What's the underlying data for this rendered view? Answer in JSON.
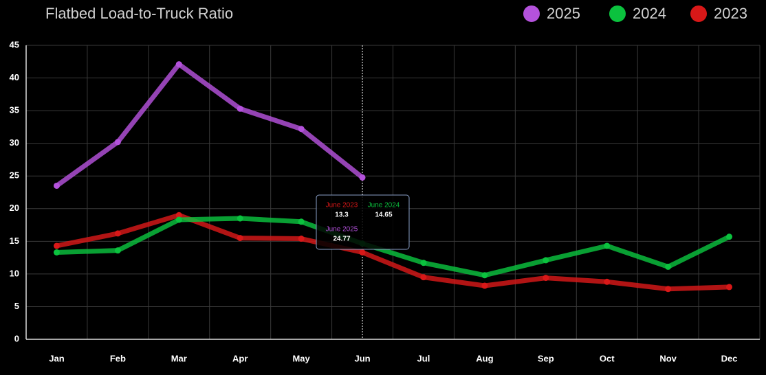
{
  "chart_data": {
    "type": "line",
    "title": "Flatbed Load-to-Truck Ratio",
    "categories": [
      "Jan",
      "Feb",
      "Mar",
      "Apr",
      "May",
      "Jun",
      "Jul",
      "Aug",
      "Sep",
      "Oct",
      "Nov",
      "Dec"
    ],
    "series": [
      {
        "name": "2025",
        "color": "#b452dc",
        "values": [
          23.5,
          30.2,
          42.1,
          35.3,
          32.2,
          24.77,
          null,
          null,
          null,
          null,
          null,
          null
        ]
      },
      {
        "name": "2024",
        "color": "#0bc23e",
        "values": [
          13.3,
          13.6,
          18.3,
          18.5,
          18.0,
          14.65,
          11.7,
          9.8,
          12.1,
          14.3,
          11.1,
          15.7
        ]
      },
      {
        "name": "2023",
        "color": "#d81818",
        "values": [
          14.3,
          16.2,
          19.0,
          15.5,
          15.4,
          13.3,
          9.5,
          8.2,
          9.4,
          8.8,
          7.7,
          8.0
        ]
      }
    ],
    "ylim": [
      0,
      45
    ],
    "yticks": [
      0,
      5,
      10,
      15,
      20,
      25,
      30,
      35,
      40,
      45
    ],
    "grid": true,
    "legend": "top-right",
    "tooltip": {
      "labels": [
        "June 2025",
        "June 2024",
        "June 2023"
      ]
    }
  }
}
